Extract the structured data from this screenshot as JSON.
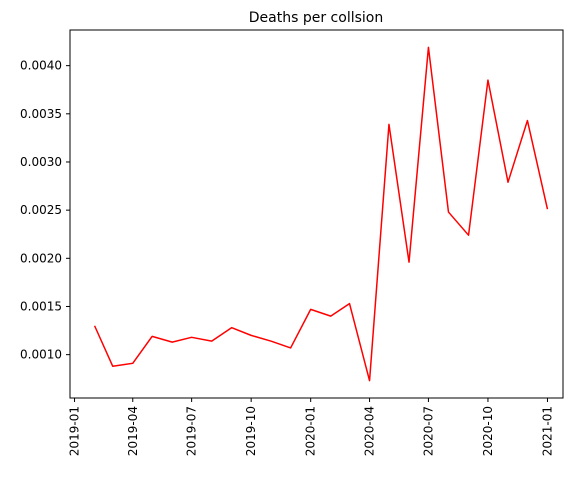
{
  "chart_data": {
    "type": "line",
    "title": "Deaths per collsion",
    "xlabel": "",
    "ylabel": "",
    "x": [
      "2019-02-01",
      "2019-03-01",
      "2019-04-01",
      "2019-05-01",
      "2019-06-01",
      "2019-07-01",
      "2019-08-01",
      "2019-09-01",
      "2019-10-01",
      "2019-11-01",
      "2019-12-01",
      "2020-01-01",
      "2020-02-01",
      "2020-03-01",
      "2020-04-01",
      "2020-05-01",
      "2020-06-01",
      "2020-07-01",
      "2020-08-01",
      "2020-09-01",
      "2020-10-01",
      "2020-11-01",
      "2020-12-01",
      "2021-01-01"
    ],
    "series": [
      {
        "color": "#ff0000",
        "values": [
          0.0013,
          0.00088,
          0.00091,
          0.00119,
          0.00113,
          0.00118,
          0.00114,
          0.00128,
          0.0012,
          0.00114,
          0.00107,
          0.00147,
          0.0014,
          0.00153,
          0.00073,
          0.00339,
          0.00196,
          0.00419,
          0.00248,
          0.00224,
          0.00385,
          0.00279,
          0.00343,
          0.00251
        ]
      }
    ],
    "xlim": [
      "2018-12-25",
      "2021-01-25"
    ],
    "ylim": [
      0.00055,
      0.00437
    ],
    "xticks": [
      "2019-01",
      "2019-04",
      "2019-07",
      "2019-10",
      "2020-01",
      "2020-04",
      "2020-07",
      "2020-10",
      "2021-01"
    ],
    "yticks": [
      "0.0010",
      "0.0015",
      "0.0020",
      "0.0025",
      "0.0030",
      "0.0035",
      "0.0040"
    ],
    "grid": false,
    "legend": "none"
  }
}
